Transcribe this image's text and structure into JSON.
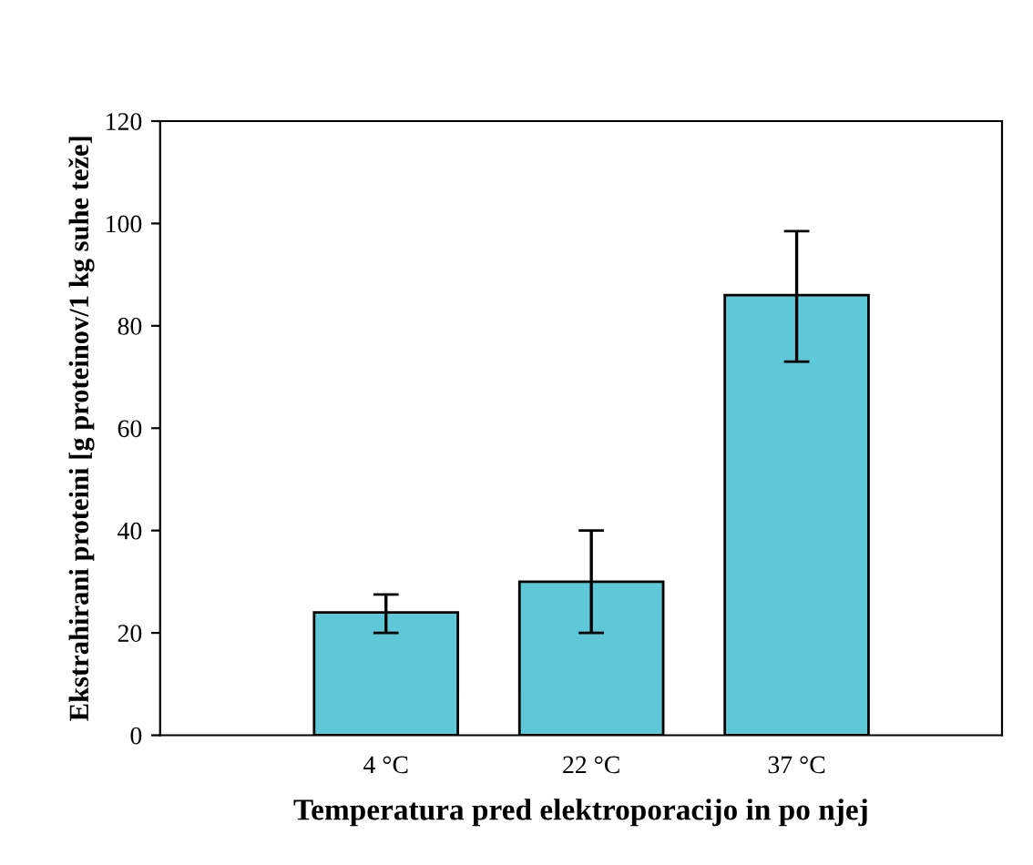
{
  "chart_data": {
    "type": "bar",
    "xlabel": "Temperatura pred elektroporacijo in po njej",
    "ylabel": "Ekstrahirani proteini [g proteinov/1 kg suhe teže]",
    "categories": [
      "4 °C",
      "22 °C",
      "37 °C"
    ],
    "values": [
      24,
      30,
      86
    ],
    "errors": [
      [
        20,
        27.5
      ],
      [
        20,
        40
      ],
      [
        73,
        98.5
      ]
    ],
    "color": "#5ec8d8",
    "ylim": [
      0,
      120
    ],
    "yticks": [
      0,
      20,
      40,
      60,
      80,
      100,
      120
    ],
    "grid": false,
    "legend": false
  }
}
